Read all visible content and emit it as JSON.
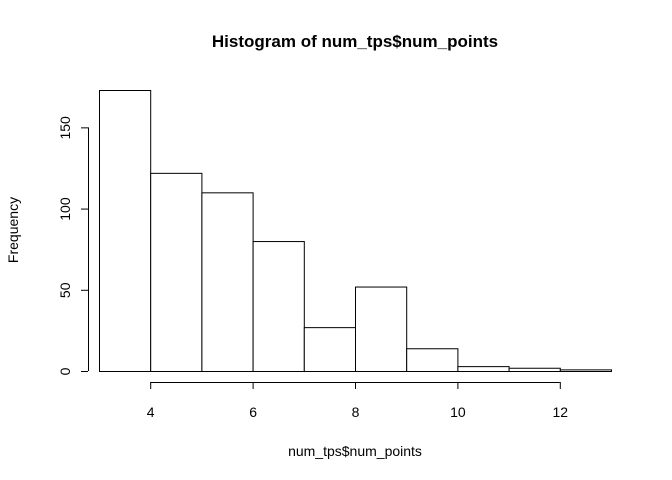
{
  "chart_data": {
    "type": "bar",
    "title": "Histogram of num_tps$num_points",
    "xlabel": "num_tps$num_points",
    "ylabel": "Frequency",
    "bins": [
      {
        "from": 3,
        "to": 4,
        "count": 173
      },
      {
        "from": 4,
        "to": 5,
        "count": 122
      },
      {
        "from": 5,
        "to": 6,
        "count": 110
      },
      {
        "from": 6,
        "to": 7,
        "count": 80
      },
      {
        "from": 7,
        "to": 8,
        "count": 27
      },
      {
        "from": 8,
        "to": 9,
        "count": 52
      },
      {
        "from": 9,
        "to": 10,
        "count": 14
      },
      {
        "from": 10,
        "to": 11,
        "count": 3
      },
      {
        "from": 11,
        "to": 12,
        "count": 2
      },
      {
        "from": 12,
        "to": 13,
        "count": 1
      }
    ],
    "xlim": [
      3,
      13
    ],
    "ylim": [
      0,
      173
    ],
    "x_ticks": [
      4,
      6,
      8,
      10,
      12
    ],
    "y_ticks": [
      0,
      50,
      100,
      150
    ],
    "grid": false,
    "colors": {
      "bar_fill": "#ffffff",
      "bar_stroke": "#000000"
    }
  }
}
